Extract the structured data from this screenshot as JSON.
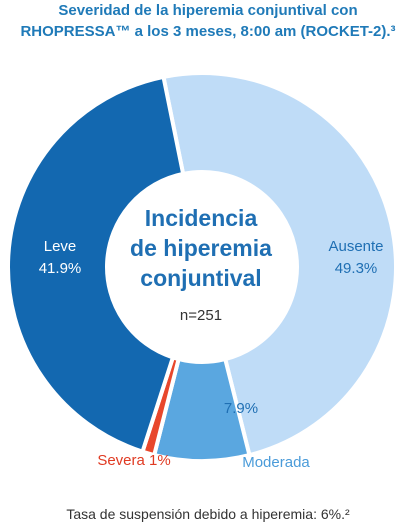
{
  "chart_data": {
    "type": "pie",
    "title_line1": "Severidad de la hiperemia conjuntival con",
    "title_line2": "RHOPRESSA™ a los 3 meses, 8:00 am (ROCKET-2).³",
    "center_title": [
      "Incidencia",
      "de hiperemia",
      "conjuntival"
    ],
    "center_n": "n=251",
    "slices": [
      {
        "name": "Ausente",
        "value": 49.3,
        "value_label": "49.3%",
        "color": "#bfdcf7",
        "label_color": "#1f6fb3"
      },
      {
        "name": "Moderada",
        "value": 7.9,
        "value_label": "7.9%",
        "color": "#5aa7e0",
        "label_color": "#4a9bd9"
      },
      {
        "name": "Severa",
        "value": 1,
        "value_label": "Severa 1%",
        "color": "#e8472c",
        "label_color": "#e03a22"
      },
      {
        "name": "Leve",
        "value": 41.9,
        "value_label": "41.9%",
        "color": "#1368b0",
        "label_color": "#ffffff"
      }
    ]
  },
  "footer": "Tasa de suspensión debido a hiperemia: 6%.²"
}
